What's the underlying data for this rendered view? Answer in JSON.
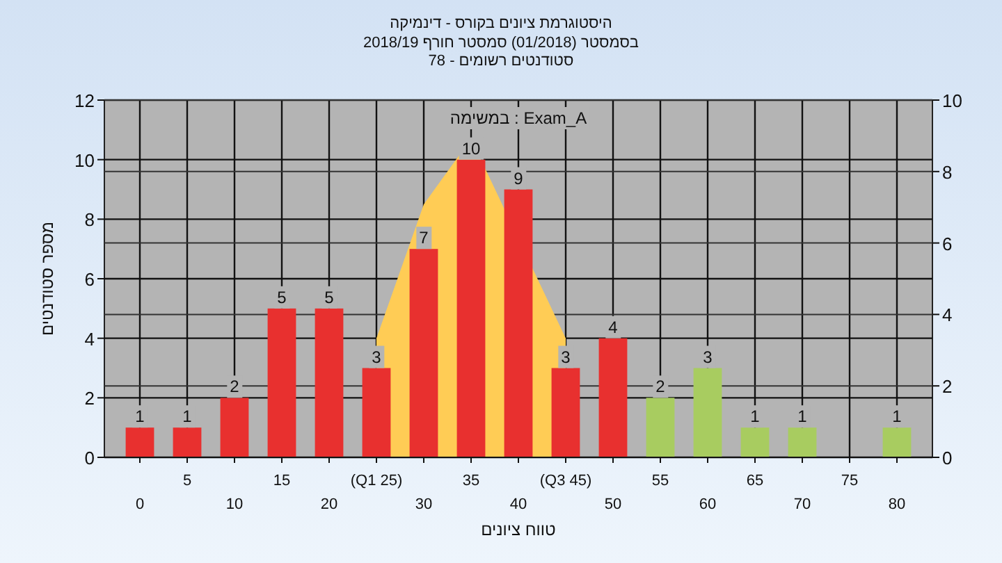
{
  "chart_data": {
    "type": "bar",
    "title": "היסטוגרמת ציונים בקורס - דינמיקה",
    "subtitle": "בסמסטר  (01/2018)  סמסטר חורף 2018/19\nסטודנטים רשומים - 78",
    "xlabel": "טווח ציונים",
    "ylabel": "מספר סטודנטים",
    "annotations": [
      "במשימה : Exam_A"
    ],
    "categories": [
      "0",
      "5",
      "10",
      "15",
      "20",
      "(Q1 25)",
      "30",
      "35",
      "40",
      "(Q3 45)",
      "50",
      "55",
      "60",
      "65",
      "70",
      "75",
      "80"
    ],
    "series": [
      {
        "type": "area",
        "color": "#ffcc55",
        "values": [
          null,
          null,
          null,
          null,
          null,
          4,
          8.5,
          10.7,
          null,
          4,
          null,
          null,
          null,
          null,
          null,
          null,
          null
        ]
      },
      {
        "colors": [
          "#e8302f",
          "#e8302f",
          "#e8302f",
          "#e8302f",
          "#e8302f",
          "#e8302f",
          "#e8302f",
          "#e8302f",
          "#e8302f",
          "#e8302f",
          "#e8302f",
          "#a8cc60",
          "#a8cc60",
          "#a8cc60",
          "#a8cc60",
          null,
          "#a8cc60"
        ],
        "values": [
          1,
          1,
          2,
          5,
          5,
          3,
          7,
          10,
          9,
          3,
          4,
          2,
          3,
          1,
          1,
          null,
          1
        ],
        "value_labels": [
          "1",
          "1",
          "2",
          "5",
          "5",
          "3",
          "7",
          "10",
          "9",
          "3",
          "4",
          "2",
          "3",
          "1",
          "1",
          null,
          "1"
        ]
      }
    ],
    "ylim": [
      0,
      12
    ],
    "yticks": [
      0,
      2,
      4,
      6,
      8,
      10,
      12
    ],
    "y2lim": [
      0,
      10
    ],
    "y2ticks": [
      0,
      2,
      4,
      6,
      8,
      10
    ],
    "grid": true
  }
}
